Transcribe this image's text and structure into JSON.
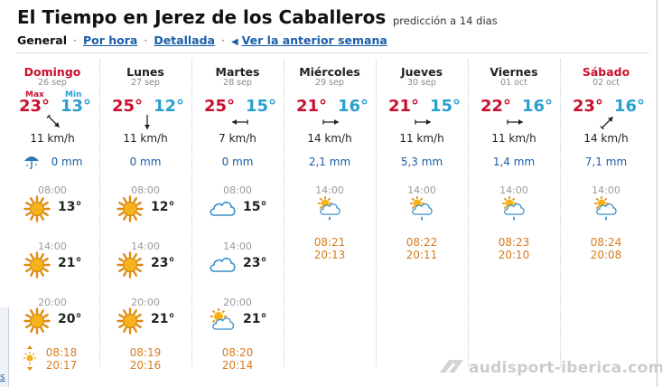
{
  "title": "El Tiempo en Jerez de los Caballeros",
  "subtitle": "predicción a 14 dias",
  "nav": {
    "general": "General",
    "separator": "·",
    "por_hora": "Por hora",
    "detallada": "Detallada",
    "anterior": "Ver la anterior semana"
  },
  "labels": {
    "max": "Max",
    "min": "Min"
  },
  "left_tab_text": "s",
  "days": [
    {
      "name": "Domingo",
      "date": "26 sep",
      "weekend": true,
      "max": "23°",
      "min": "13°",
      "wind": "11 km/h",
      "wind_dir": "se",
      "rain": "0 mm",
      "rain_icon": "umbrella-icon",
      "slots": [
        {
          "time": "08:00",
          "icon": "sun",
          "temp": "13°"
        },
        {
          "time": "14:00",
          "icon": "sun",
          "temp": "21°"
        },
        {
          "time": "20:00",
          "icon": "sun",
          "temp": "20°"
        }
      ],
      "sunrise": "08:18",
      "sunset": "20:17"
    },
    {
      "name": "Lunes",
      "date": "27 sep",
      "weekend": false,
      "max": "25°",
      "min": "12°",
      "wind": "11 km/h",
      "wind_dir": "s",
      "rain": "0 mm",
      "slots": [
        {
          "time": "08:00",
          "icon": "sun",
          "temp": "12°"
        },
        {
          "time": "14:00",
          "icon": "sun",
          "temp": "23°"
        },
        {
          "time": "20:00",
          "icon": "sun",
          "temp": "21°"
        }
      ],
      "sunrise": "08:19",
      "sunset": "20:16"
    },
    {
      "name": "Martes",
      "date": "28 sep",
      "weekend": false,
      "max": "25°",
      "min": "15°",
      "wind": "7 km/h",
      "wind_dir": "w",
      "rain": "0 mm",
      "slots": [
        {
          "time": "08:00",
          "icon": "cloud",
          "temp": "15°"
        },
        {
          "time": "14:00",
          "icon": "cloud",
          "temp": "23°"
        },
        {
          "time": "20:00",
          "icon": "sun-cloud",
          "temp": "21°"
        }
      ],
      "sunrise": "08:20",
      "sunset": "20:14"
    },
    {
      "name": "Miércoles",
      "date": "29 sep",
      "weekend": false,
      "max": "21°",
      "min": "16°",
      "wind": "14 km/h",
      "wind_dir": "e",
      "rain": "2,1 mm",
      "slots": [
        {
          "time": "14:00",
          "icon": "sun-cloud-rain",
          "temp": ""
        }
      ],
      "sunrise": "08:21",
      "sunset": "20:13"
    },
    {
      "name": "Jueves",
      "date": "30 sep",
      "weekend": false,
      "max": "21°",
      "min": "15°",
      "wind": "11 km/h",
      "wind_dir": "e",
      "rain": "5,3 mm",
      "slots": [
        {
          "time": "14:00",
          "icon": "sun-cloud-rain",
          "temp": ""
        }
      ],
      "sunrise": "08:22",
      "sunset": "20:11"
    },
    {
      "name": "Viernes",
      "date": "01 oct",
      "weekend": false,
      "max": "22°",
      "min": "16°",
      "wind": "11 km/h",
      "wind_dir": "e",
      "rain": "1,4 mm",
      "slots": [
        {
          "time": "14:00",
          "icon": "sun-cloud-rain",
          "temp": ""
        }
      ],
      "sunrise": "08:23",
      "sunset": "20:10"
    },
    {
      "name": "Sábado",
      "date": "02 oct",
      "weekend": true,
      "max": "23°",
      "min": "16°",
      "wind": "14 km/h",
      "wind_dir": "ne",
      "rain": "7,1 mm",
      "slots": [
        {
          "time": "14:00",
          "icon": "sun-cloud-rain",
          "temp": ""
        }
      ],
      "sunrise": "08:24",
      "sunset": "20:08"
    }
  ],
  "watermark": "audisport-iberica.com",
  "colors": {
    "max": "#c8102e",
    "min": "#2aa0cf",
    "link": "#1a5ea8",
    "sun_times": "#d87c1e"
  }
}
